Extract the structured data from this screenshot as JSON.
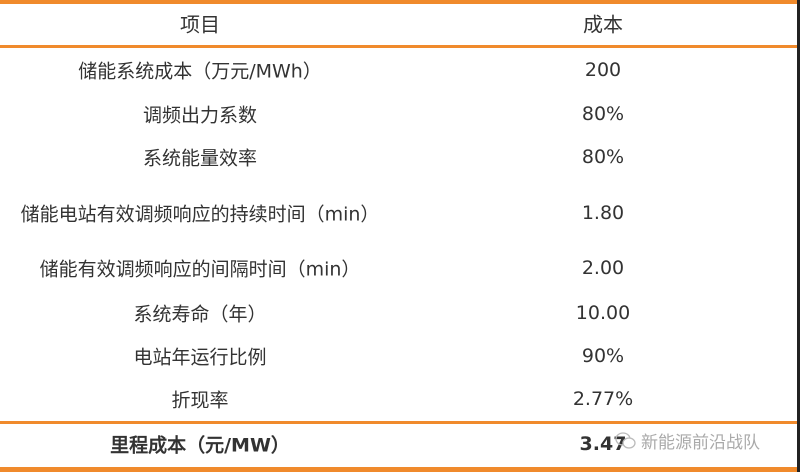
{
  "table": {
    "headers": [
      "项目",
      "成本"
    ],
    "rows": [
      {
        "item": "储能系统成本（万元/MWh）",
        "value": "200"
      },
      {
        "item": "调频出力系数",
        "value": "80%"
      },
      {
        "item": "系统能量效率",
        "value": "80%"
      },
      {
        "item": "储能电站有效调频响应的持续时间（min）",
        "value": "1.80"
      },
      {
        "item": "储能有效调频响应的间隔时间（min）",
        "value": "2.00"
      },
      {
        "item": "系统寿命（年）",
        "value": "10.00"
      },
      {
        "item": "电站年运行比例",
        "value": "90%"
      },
      {
        "item": "折现率",
        "value": "2.77%"
      }
    ],
    "total": {
      "item": "里程成本（元/MW）",
      "value": "3.47"
    }
  },
  "watermark": {
    "text": "新能源前沿战队",
    "icon": "wechat-icon"
  },
  "colors": {
    "rule": "#f08a2c",
    "text": "#333333"
  }
}
